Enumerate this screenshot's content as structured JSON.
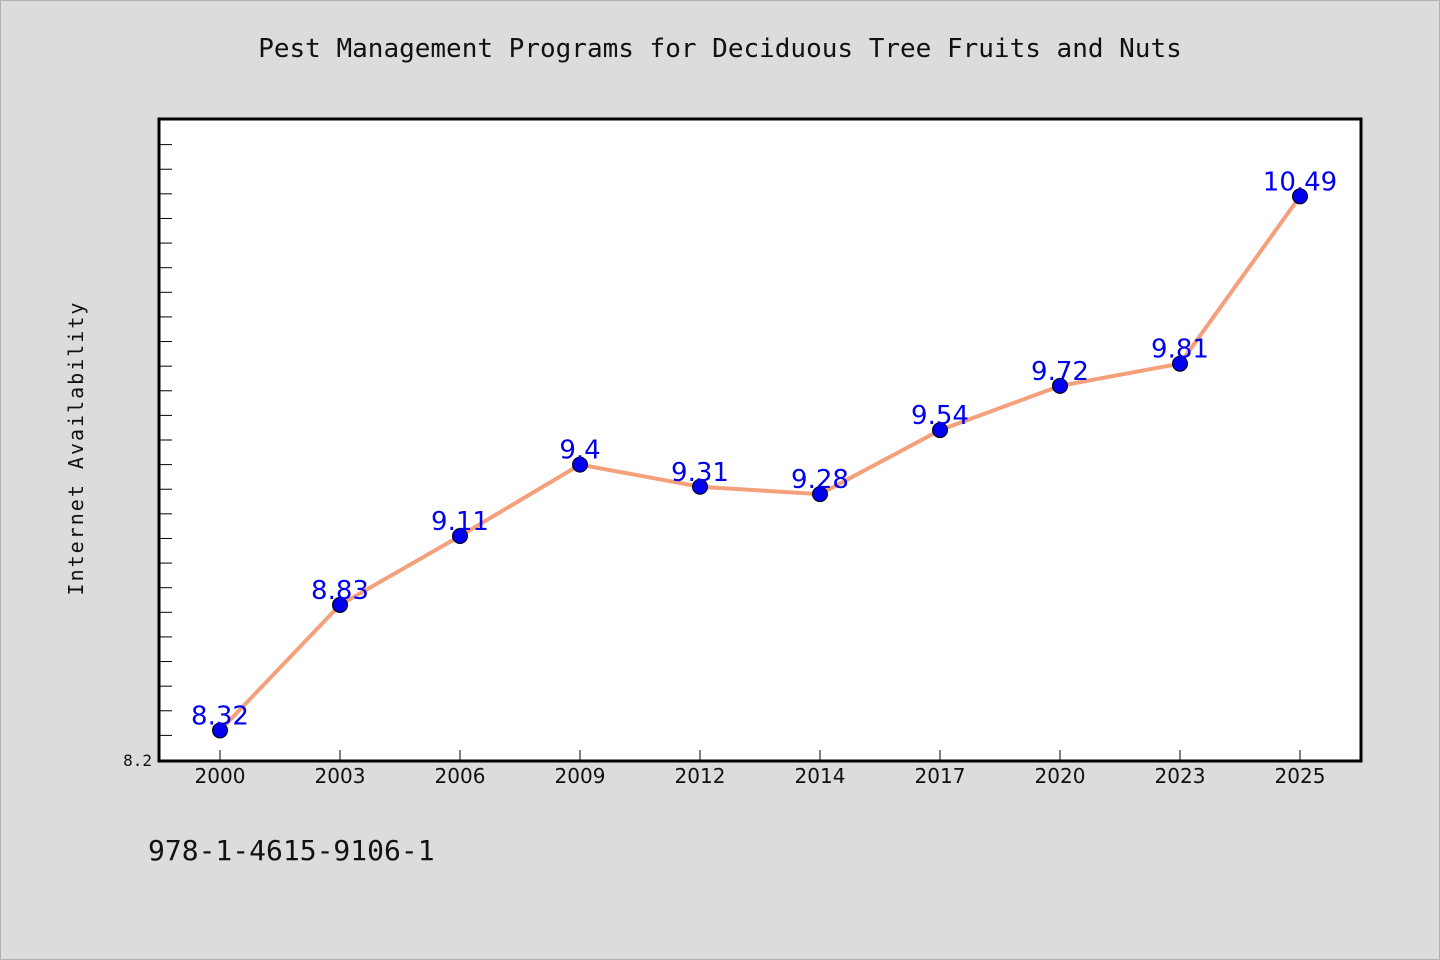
{
  "title": "Pest Management Programs for Deciduous Tree Fruits and Nuts",
  "footnote": "978-1-4615-9106-1",
  "colors": {
    "background": "#dcdcdc",
    "plot_background": "#ffffff",
    "line": "#f4a07a",
    "marker": "#0000ee",
    "data_label": "#0000ee"
  },
  "chart_data": {
    "type": "line",
    "title": "Pest Management Programs for Deciduous Tree Fruits and Nuts",
    "xlabel": "",
    "ylabel": "Internet Availability",
    "categories": [
      "2000",
      "2003",
      "2006",
      "2009",
      "2012",
      "2014",
      "2017",
      "2020",
      "2023",
      "2025"
    ],
    "series": [
      {
        "values": [
          8.32,
          8.83,
          9.11,
          9.4,
          9.31,
          9.28,
          9.54,
          9.72,
          9.81,
          10.49
        ]
      }
    ],
    "y_tick_labels": [
      "8.2"
    ],
    "ylim": [
      8.2,
      10.8
    ],
    "grid": false,
    "legend": "none"
  }
}
